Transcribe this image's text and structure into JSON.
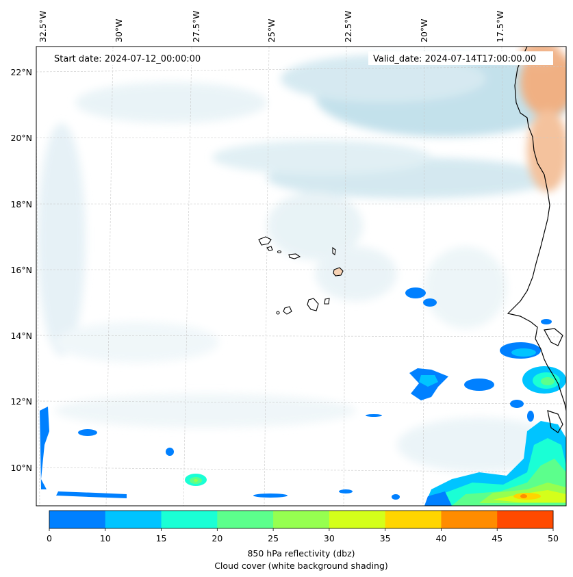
{
  "header": {
    "start_date": "Start date: 2024-07-12_00:00:00",
    "valid_date": "Valid_date: 2024-07-14T17:00:00.00"
  },
  "map": {
    "lon_labels": [
      "32.5°W",
      "30°W",
      "27.5°W",
      "25°W",
      "22.5°W",
      "20°W",
      "17.5°W"
    ],
    "lat_labels": [
      "22°N",
      "20°N",
      "18°N",
      "16°N",
      "14°N",
      "12°N",
      "10°N"
    ],
    "land_edge_color": "#000000",
    "cloud_color": "#cfe6ef",
    "dust_color": "#f2b78d"
  },
  "colorbar": {
    "ticks": [
      "0",
      "10",
      "15",
      "20",
      "25",
      "30",
      "35",
      "40",
      "45",
      "50"
    ],
    "colors": [
      "#0080ff",
      "#00c4ff",
      "#1affd5",
      "#5cff8c",
      "#96ff50",
      "#d4ff1a",
      "#ffd500",
      "#ff8c00",
      "#ff4a00"
    ],
    "label": "850 hPa reflectivity (dbz)",
    "sublabel": "Cloud cover (white background shading)"
  }
}
